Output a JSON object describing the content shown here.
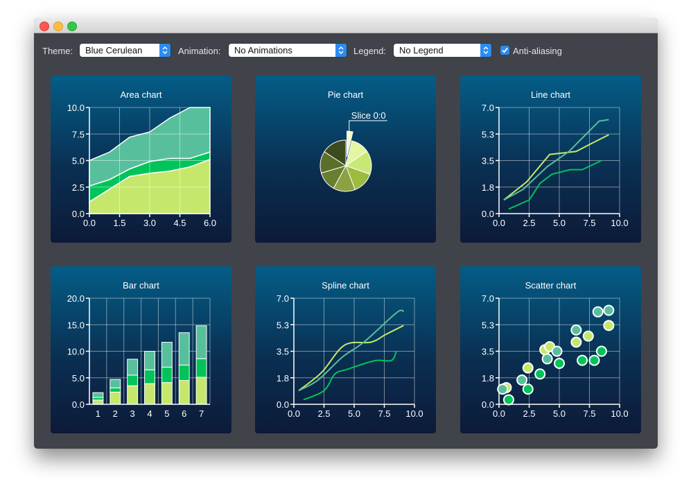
{
  "toolbar": {
    "theme_label": "Theme:",
    "theme_value": "Blue Cerulean",
    "animation_label": "Animation:",
    "animation_value": "No Animations",
    "legend_label": "Legend:",
    "legend_value": "No Legend",
    "antialias_label": "Anti-aliasing",
    "antialias_checked": true
  },
  "colors": {
    "series1": "#c5e86c",
    "series2": "#00c45a",
    "series3": "#58bf9d",
    "accent": "#2b8cf4"
  },
  "chart_data": [
    {
      "type": "area",
      "title": "Area chart",
      "xlim": [
        0,
        6
      ],
      "ylim": [
        0,
        10
      ],
      "x_ticks": [
        "0.0",
        "1.5",
        "3.0",
        "4.5",
        "6.0"
      ],
      "y_ticks": [
        "0.0",
        "2.5",
        "5.0",
        "7.5",
        "10.0"
      ],
      "x": [
        0,
        1,
        2,
        3,
        4,
        5,
        6
      ],
      "series": [
        {
          "values": [
            1.1,
            2.3,
            3.5,
            3.8,
            4.0,
            4.4,
            5.1
          ]
        },
        {
          "values": [
            2.6,
            3.2,
            4.2,
            4.9,
            5.2,
            5.2,
            5.8
          ]
        },
        {
          "values": [
            5.0,
            5.8,
            7.2,
            7.7,
            9.0,
            10.0,
            10.0
          ]
        }
      ]
    },
    {
      "type": "pie",
      "title": "Pie chart",
      "annotation": "Slice 0:0",
      "slices": [
        {
          "value": 0.9,
          "color": "#f5fabe",
          "exploded": true
        },
        {
          "value": 2.8,
          "color": "#e4f5a3"
        },
        {
          "value": 3.6,
          "color": "#c8e876"
        },
        {
          "value": 3.3,
          "color": "#9dbb3f"
        },
        {
          "value": 3.3,
          "color": "#8ba142"
        },
        {
          "value": 3.0,
          "color": "#687f2f"
        },
        {
          "value": 3.3,
          "color": "#5b6e2a"
        },
        {
          "value": 3.8,
          "color": "#3c4a1d"
        }
      ]
    },
    {
      "type": "line",
      "title": "Line chart",
      "xlim": [
        0,
        10
      ],
      "ylim": [
        0,
        7
      ],
      "x_ticks": [
        "0.0",
        "2.5",
        "5.0",
        "7.5",
        "10.0"
      ],
      "y_ticks": [
        "0.0",
        "1.8",
        "3.5",
        "5.3",
        "7.0"
      ],
      "series": [
        {
          "color": "#00c45a",
          "x": [
            0.8,
            2.5,
            3.4,
            4.4,
            5.9,
            6.9,
            8.5
          ],
          "y": [
            0.3,
            0.9,
            2.0,
            2.6,
            2.9,
            2.9,
            3.5
          ]
        },
        {
          "color": "#c5e86c",
          "x": [
            0.4,
            2.3,
            4.2,
            6.4,
            7.6,
            9.1
          ],
          "y": [
            0.9,
            2.1,
            3.9,
            4.1,
            4.6,
            5.2
          ]
        },
        {
          "color": "#58bf9d",
          "x": [
            0.4,
            2.0,
            4.0,
            5.8,
            8.3,
            9.1
          ],
          "y": [
            0.9,
            1.6,
            3.1,
            4.1,
            6.1,
            6.2
          ]
        }
      ]
    },
    {
      "type": "bar",
      "title": "Bar chart",
      "ylim": [
        0,
        20
      ],
      "categories": [
        "1",
        "2",
        "3",
        "4",
        "5",
        "6",
        "7"
      ],
      "y_ticks": [
        "0.0",
        "5.0",
        "10.0",
        "15.0",
        "20.0"
      ],
      "series": [
        {
          "color": "#c5e86c",
          "values": [
            0.8,
            2.3,
            3.5,
            3.9,
            4.1,
            4.5,
            5.1
          ]
        },
        {
          "color": "#00c45a",
          "values": [
            0.5,
            0.8,
            2.0,
            2.6,
            2.9,
            2.9,
            3.5
          ]
        },
        {
          "color": "#58bf9d",
          "values": [
            0.9,
            1.6,
            3.0,
            3.5,
            4.7,
            6.1,
            6.2
          ]
        }
      ]
    },
    {
      "type": "spline",
      "title": "Spline chart",
      "xlim": [
        0,
        10
      ],
      "ylim": [
        0,
        7
      ],
      "x_ticks": [
        "0.0",
        "2.5",
        "5.0",
        "7.5",
        "10.0"
      ],
      "y_ticks": [
        "0.0",
        "1.8",
        "3.5",
        "5.3",
        "7.0"
      ],
      "series": [
        {
          "color": "#00c45a",
          "x": [
            0.8,
            2.5,
            3.4,
            4.4,
            5.9,
            6.9,
            8.1,
            8.5
          ],
          "y": [
            0.3,
            0.9,
            2.0,
            2.3,
            2.7,
            2.9,
            2.9,
            3.5
          ]
        },
        {
          "color": "#c5e86c",
          "x": [
            0.4,
            2.3,
            4.2,
            6.4,
            7.6,
            9.1
          ],
          "y": [
            0.9,
            2.1,
            3.9,
            4.1,
            4.6,
            5.2
          ]
        },
        {
          "color": "#58bf9d",
          "x": [
            0.4,
            2.0,
            4.0,
            5.8,
            8.3,
            8.9,
            9.1
          ],
          "y": [
            0.9,
            1.6,
            3.1,
            4.1,
            5.9,
            6.2,
            6.1
          ]
        }
      ]
    },
    {
      "type": "scatter",
      "title": "Scatter chart",
      "xlim": [
        0,
        10
      ],
      "ylim": [
        0,
        7
      ],
      "x_ticks": [
        "0.0",
        "2.5",
        "5.0",
        "7.5",
        "10.0"
      ],
      "y_ticks": [
        "0.0",
        "1.8",
        "3.5",
        "5.3",
        "7.0"
      ],
      "series": [
        {
          "color": "#c5e86c",
          "x": [
            0.6,
            2.4,
            3.8,
            4.2,
            6.4,
            7.4,
            9.1
          ],
          "y": [
            1.1,
            2.4,
            3.6,
            3.8,
            4.1,
            4.5,
            5.2
          ]
        },
        {
          "color": "#00c45a",
          "x": [
            0.8,
            2.4,
            3.4,
            5.0,
            6.9,
            7.9,
            8.5
          ],
          "y": [
            0.3,
            1.0,
            2.0,
            2.7,
            2.9,
            2.9,
            3.5
          ]
        },
        {
          "color": "#58bf9d",
          "x": [
            0.3,
            1.9,
            4.0,
            4.8,
            6.4,
            8.2,
            9.1
          ],
          "y": [
            1.0,
            1.6,
            3.0,
            3.5,
            4.9,
            6.1,
            6.2
          ]
        }
      ]
    }
  ]
}
